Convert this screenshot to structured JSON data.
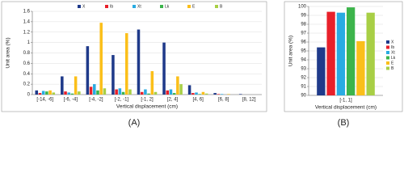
{
  "chart_data": [
    {
      "type": "bar",
      "caption": "(A)",
      "ylabel": "Unit area (%)",
      "xlabel": "Vertical displacement (cm)",
      "categories": [
        "[-14, -6]",
        "[-6, -4]",
        "[-4, -2]",
        "[-2, -1]",
        "[-1, 2]",
        "[2, 4]",
        "[4, 6]",
        "[6, 8]",
        "[8, 12]"
      ],
      "series": [
        {
          "name": "X",
          "color": "#1f3a8a",
          "values": [
            0.08,
            0.35,
            0.93,
            0.76,
            1.25,
            1.0,
            0.18,
            0.03,
            0.01
          ]
        },
        {
          "name": "Ib",
          "color": "#e8202a",
          "values": [
            0.03,
            0.06,
            0.15,
            0.1,
            0.05,
            0.08,
            0.03,
            0.01,
            0
          ]
        },
        {
          "name": "Xt",
          "color": "#29abe2",
          "values": [
            0.07,
            0.04,
            0.2,
            0.12,
            0.1,
            0.1,
            0.04,
            0.01,
            0
          ]
        },
        {
          "name": "Lk",
          "color": "#3cb44b",
          "values": [
            0.06,
            0.02,
            0.08,
            0.05,
            0.02,
            0.03,
            0.01,
            0,
            0
          ]
        },
        {
          "name": "E",
          "color": "#fbbf1a",
          "values": [
            0.08,
            0.35,
            1.38,
            1.18,
            0.45,
            0.35,
            0.05,
            0.01,
            0
          ]
        },
        {
          "name": "B",
          "color": "#a8cf45",
          "values": [
            0.04,
            0.06,
            0.12,
            0.1,
            0.05,
            0.2,
            0.02,
            0,
            0
          ]
        }
      ],
      "ylim": [
        0,
        1.6
      ],
      "yticks": [
        0,
        0.2,
        0.4,
        0.6,
        0.8,
        1,
        1.2,
        1.4,
        1.6
      ],
      "grid": true,
      "legend": "top"
    },
    {
      "type": "bar",
      "caption": "(B)",
      "ylabel": "Unit area (%)",
      "xlabel": "Vertical displacement (cm)",
      "categories": [
        "[-1, 1]"
      ],
      "series": [
        {
          "name": "X",
          "color": "#1f3a8a",
          "values": [
            95.4
          ]
        },
        {
          "name": "Ib",
          "color": "#e8202a",
          "values": [
            99.4
          ]
        },
        {
          "name": "Xt",
          "color": "#29abe2",
          "values": [
            99.3
          ]
        },
        {
          "name": "Lk",
          "color": "#3cb44b",
          "values": [
            99.9
          ]
        },
        {
          "name": "E",
          "color": "#fbbf1a",
          "values": [
            96.1
          ]
        },
        {
          "name": "B",
          "color": "#a8cf45",
          "values": [
            99.3
          ]
        }
      ],
      "ylim": [
        90,
        100
      ],
      "yticks": [
        90,
        91,
        92,
        93,
        94,
        95,
        96,
        97,
        98,
        99,
        100
      ],
      "grid": true,
      "legend": "right"
    }
  ]
}
